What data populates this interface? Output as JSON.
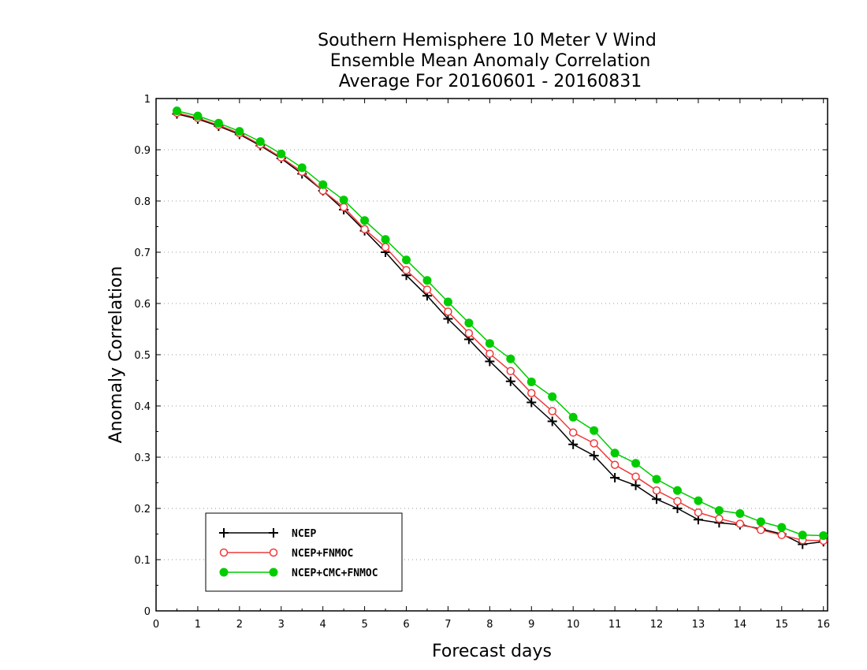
{
  "chart_data": {
    "type": "line",
    "title_lines": [
      "Southern Hemisphere 10 Meter V Wind",
      "Ensemble Mean Anomaly Correlation",
      "Average For 20160601 - 20160831"
    ],
    "xlabel": "Forecast days",
    "ylabel": "Anomaly Correlation",
    "xlim": [
      0,
      16.1
    ],
    "ylim": [
      0,
      1
    ],
    "x_ticks": [
      0,
      1,
      2,
      3,
      4,
      5,
      6,
      7,
      8,
      9,
      10,
      11,
      12,
      13,
      14,
      15,
      16
    ],
    "y_ticks": [
      0,
      0.1,
      0.2,
      0.3,
      0.4,
      0.5,
      0.6,
      0.7,
      0.8,
      0.9,
      1
    ],
    "y_tick_labels": [
      "0",
      "0.1",
      "0.2",
      "0.3",
      "0.4",
      "0.5",
      "0.6",
      "0.7",
      "0.8",
      "0.9",
      "1"
    ],
    "grid": "horizontal dotted",
    "legend_position": "bottom-left",
    "x": [
      0.5,
      1,
      1.5,
      2,
      2.5,
      3,
      3.5,
      4,
      4.5,
      5,
      5.5,
      6,
      6.5,
      7,
      7.5,
      8,
      8.5,
      9,
      9.5,
      10,
      10.5,
      11,
      11.5,
      12,
      12.5,
      13,
      13.5,
      14,
      14.5,
      15,
      15.5,
      16
    ],
    "series": [
      {
        "name": "NCEP",
        "color": "#000000",
        "marker": "plus",
        "values": [
          0.97,
          0.96,
          0.946,
          0.93,
          0.908,
          0.883,
          0.853,
          0.82,
          0.783,
          0.742,
          0.7,
          0.655,
          0.615,
          0.57,
          0.53,
          0.487,
          0.448,
          0.407,
          0.37,
          0.325,
          0.303,
          0.26,
          0.245,
          0.218,
          0.2,
          0.178,
          0.172,
          0.168,
          0.16,
          0.15,
          0.13,
          0.135
        ]
      },
      {
        "name": "NCEP+FNMOC",
        "color": "#ee3b3b",
        "marker": "open-circle",
        "values": [
          0.972,
          0.962,
          0.948,
          0.932,
          0.91,
          0.885,
          0.857,
          0.82,
          0.788,
          0.745,
          0.71,
          0.665,
          0.627,
          0.584,
          0.542,
          0.502,
          0.468,
          0.425,
          0.39,
          0.348,
          0.327,
          0.285,
          0.262,
          0.235,
          0.214,
          0.192,
          0.18,
          0.17,
          0.158,
          0.148,
          0.138,
          0.137
        ]
      },
      {
        "name": "NCEP+CMC+FNMOC",
        "color": "#00cc00",
        "marker": "filled-circle",
        "values": [
          0.976,
          0.966,
          0.952,
          0.936,
          0.916,
          0.892,
          0.865,
          0.832,
          0.802,
          0.762,
          0.725,
          0.685,
          0.645,
          0.603,
          0.562,
          0.522,
          0.492,
          0.447,
          0.418,
          0.378,
          0.352,
          0.308,
          0.288,
          0.257,
          0.235,
          0.215,
          0.196,
          0.19,
          0.174,
          0.163,
          0.148,
          0.147
        ]
      }
    ]
  }
}
